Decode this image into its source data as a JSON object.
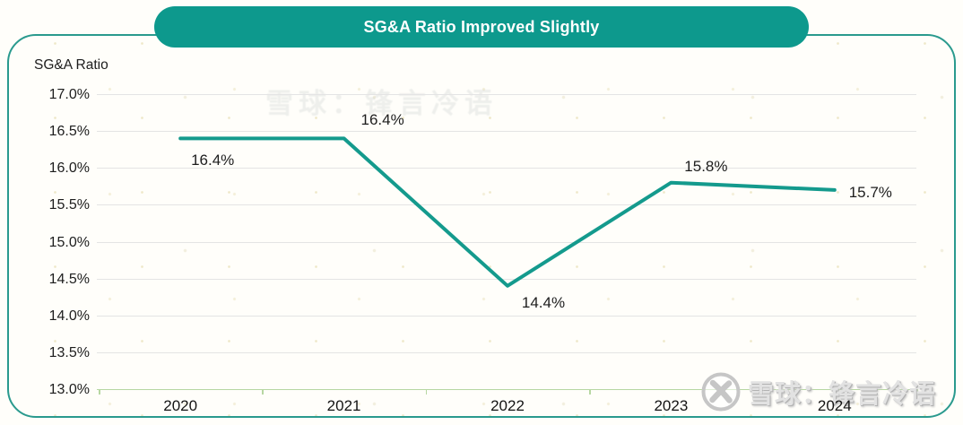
{
  "title": {
    "text": "SG&A Ratio Improved Slightly"
  },
  "axis_title": "SG&A Ratio",
  "watermark": {
    "source": "xueqiu-logo",
    "text": "雪球：锋言冷语"
  },
  "colors": {
    "pill": "#0d998d",
    "line": "#149a8d",
    "card_border": "#2a9a8e",
    "gridline": "#e4e4e4",
    "baseline": "#b7d7a2",
    "text": "#1d1d1d"
  },
  "chart_data": {
    "type": "line",
    "title": "SG&A Ratio Improved Slightly",
    "ylabel": "SG&A Ratio",
    "x": [
      "2020",
      "2021",
      "2022",
      "2023",
      "2024"
    ],
    "series": [
      {
        "name": "SG&A Ratio",
        "values": [
          16.4,
          16.4,
          14.4,
          15.8,
          15.7
        ]
      }
    ],
    "point_labels": [
      "16.4%",
      "16.4%",
      "14.4%",
      "15.8%",
      "15.7%"
    ],
    "ylim": [
      13.0,
      17.0
    ],
    "ytick_step": 0.5,
    "ytick_labels": [
      "17.0%",
      "16.5%",
      "16.0%",
      "15.5%",
      "15.0%",
      "14.5%",
      "14.0%",
      "13.5%",
      "13.0%"
    ],
    "grid": true,
    "legend": false,
    "line_color": "#149a8d"
  }
}
